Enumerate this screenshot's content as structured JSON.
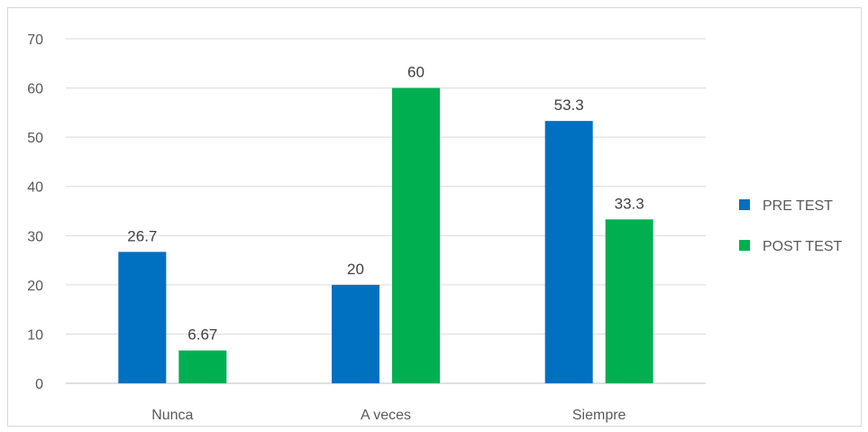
{
  "chart_data": {
    "type": "bar",
    "title": "",
    "xlabel": "",
    "ylabel": "",
    "categories": [
      "Nunca",
      "A veces",
      "Siempre"
    ],
    "series": [
      {
        "name": "PRE TEST",
        "values": [
          26.7,
          20,
          53.3
        ],
        "labels": [
          "26.7",
          "20",
          "53.3"
        ],
        "color": "#0070c0"
      },
      {
        "name": "POST TEST",
        "values": [
          6.67,
          60,
          33.3
        ],
        "labels": [
          "6.67",
          "60",
          "33.3"
        ],
        "color": "#00b050"
      }
    ],
    "ylim": [
      0,
      70
    ],
    "yticks": [
      "0",
      "10",
      "20",
      "30",
      "40",
      "50",
      "60",
      "70"
    ],
    "grid": true,
    "legend_position": "right"
  }
}
